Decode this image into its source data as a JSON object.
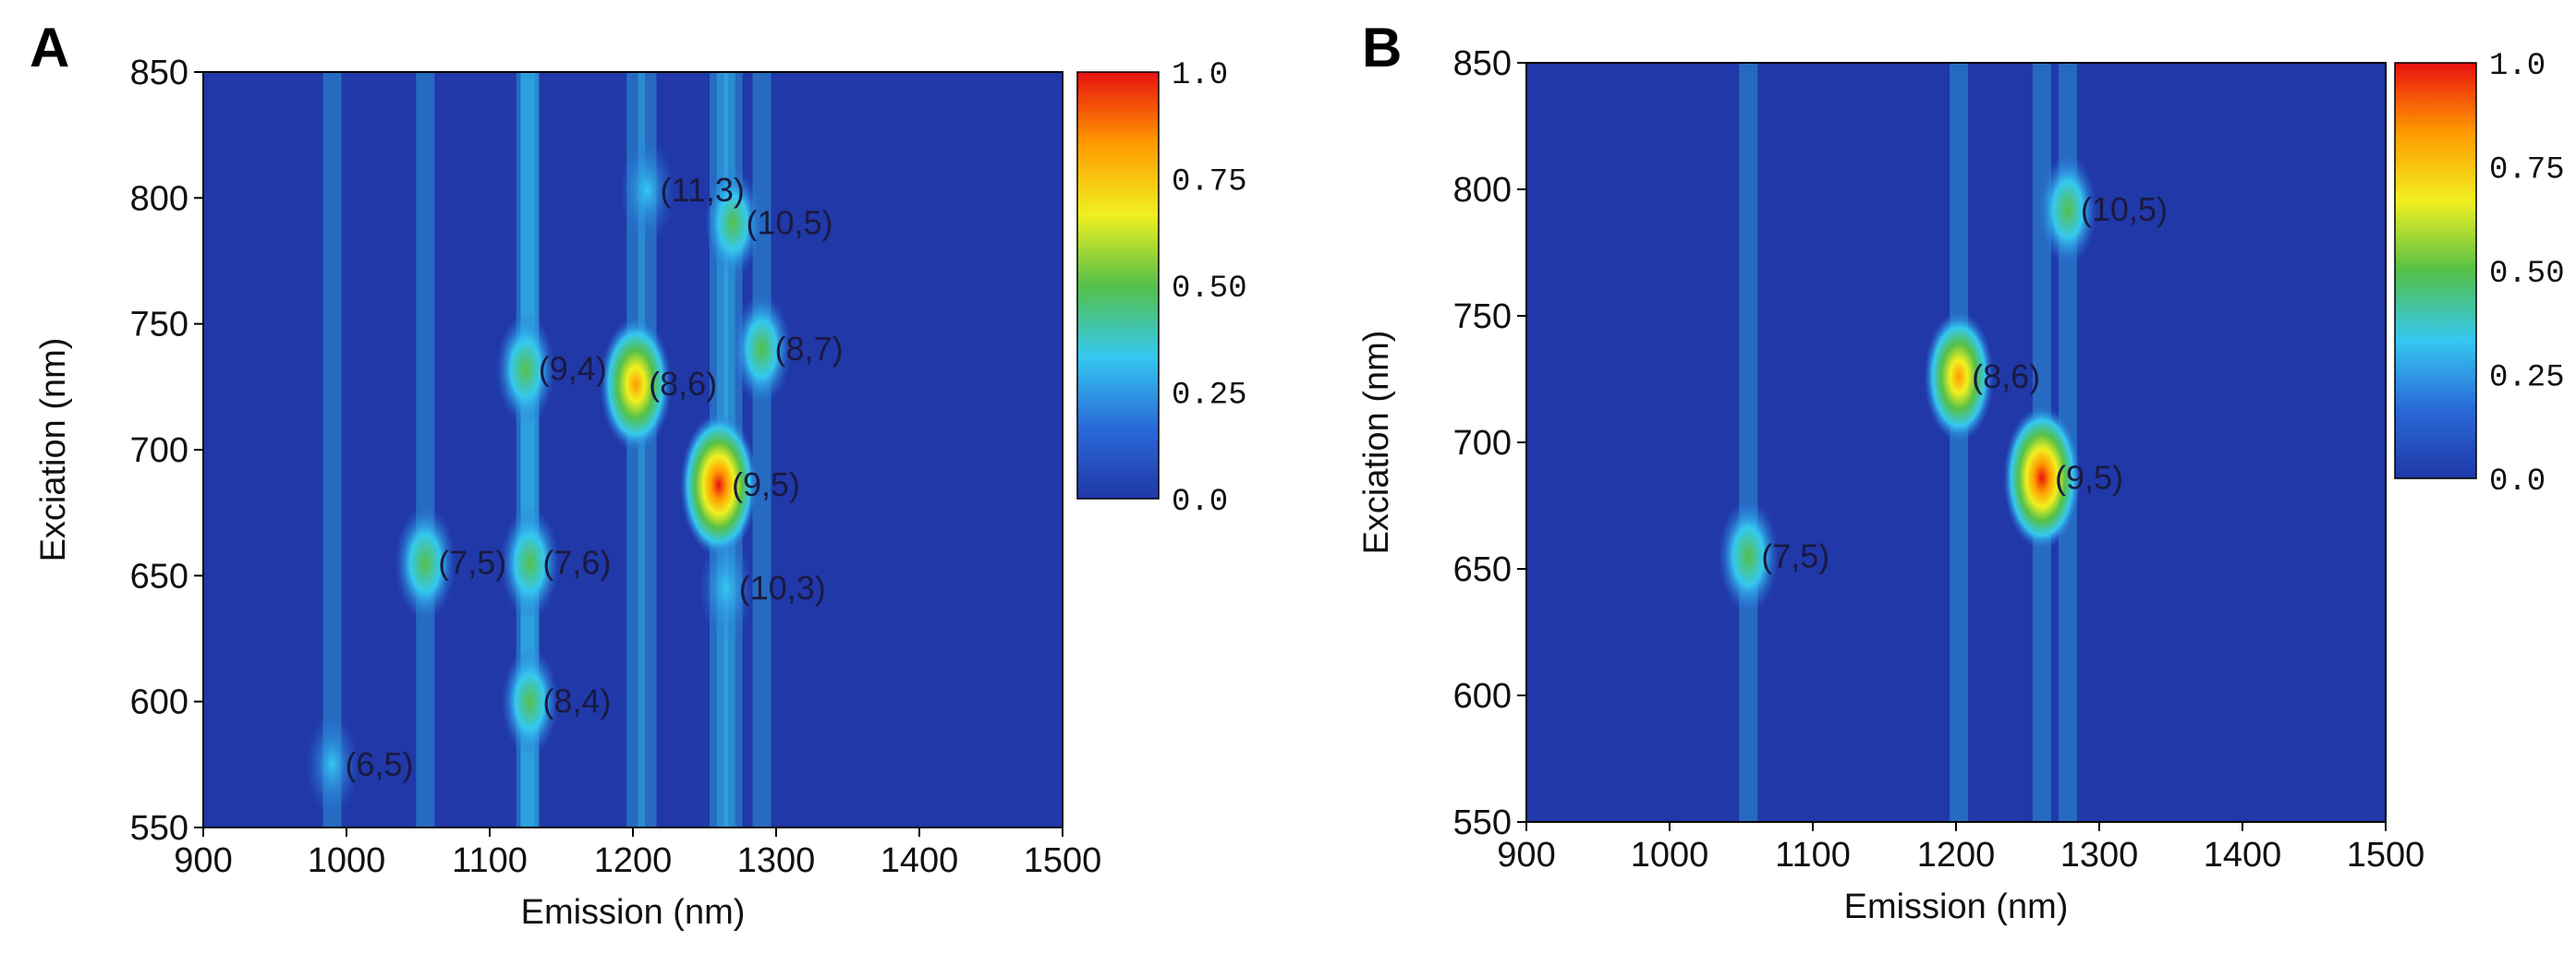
{
  "chart_data": [
    {
      "type": "heatmap",
      "panel": "A",
      "xlabel": "Emission (nm)",
      "ylabel": "Exciation (nm)",
      "xlim": [
        900,
        1500
      ],
      "ylim": [
        550,
        850
      ],
      "xticks": [
        "900",
        "1000",
        "1100",
        "1200",
        "1300",
        "1400",
        "1500"
      ],
      "yticks": [
        "550",
        "600",
        "650",
        "700",
        "750",
        "800",
        "850"
      ],
      "colorbar": {
        "range": [
          0,
          1.0
        ],
        "ticks": [
          "0.0",
          "0.25",
          "0.50",
          "0.75",
          "1.0"
        ]
      },
      "colormap": [
        "#2038a8",
        "#2a6ad8",
        "#35c8f0",
        "#55c048",
        "#f0f020",
        "#ff9a00",
        "#e81010"
      ],
      "peaks": [
        {
          "label": "(6,5)",
          "x": 990,
          "y": 575,
          "value": 0.35
        },
        {
          "label": "(7,5)",
          "x": 1055,
          "y": 655,
          "value": 0.55
        },
        {
          "label": "(7,6)",
          "x": 1128,
          "y": 655,
          "value": 0.5
        },
        {
          "label": "(8,4)",
          "x": 1128,
          "y": 600,
          "value": 0.45
        },
        {
          "label": "(9,4)",
          "x": 1125,
          "y": 732,
          "value": 0.5
        },
        {
          "label": "(8,6)",
          "x": 1202,
          "y": 726,
          "value": 0.85
        },
        {
          "label": "(9,5)",
          "x": 1260,
          "y": 686,
          "value": 1.0
        },
        {
          "label": "(10,3)",
          "x": 1265,
          "y": 645,
          "value": 0.4
        },
        {
          "label": "(11,3)",
          "x": 1210,
          "y": 803,
          "value": 0.4
        },
        {
          "label": "(10,5)",
          "x": 1270,
          "y": 790,
          "value": 0.45
        },
        {
          "label": "(8,7)",
          "x": 1290,
          "y": 740,
          "value": 0.5
        }
      ]
    },
    {
      "type": "heatmap",
      "panel": "B",
      "xlabel": "Emission (nm)",
      "ylabel": "Exciation (nm)",
      "xlim": [
        900,
        1500
      ],
      "ylim": [
        550,
        850
      ],
      "xticks": [
        "900",
        "1000",
        "1100",
        "1200",
        "1300",
        "1400",
        "1500"
      ],
      "yticks": [
        "550",
        "600",
        "650",
        "700",
        "750",
        "800",
        "850"
      ],
      "colorbar": {
        "range": [
          0,
          1.0
        ],
        "ticks": [
          "0.0",
          "0.25",
          "0.50",
          "0.75",
          "1.0"
        ]
      },
      "colormap": [
        "#2038a8",
        "#2a6ad8",
        "#35c8f0",
        "#55c048",
        "#f0f020",
        "#ff9a00",
        "#e81010"
      ],
      "peaks": [
        {
          "label": "(7,5)",
          "x": 1055,
          "y": 655,
          "value": 0.55
        },
        {
          "label": "(8,6)",
          "x": 1202,
          "y": 726,
          "value": 0.8
        },
        {
          "label": "(9,5)",
          "x": 1260,
          "y": 686,
          "value": 1.0
        },
        {
          "label": "(10,5)",
          "x": 1278,
          "y": 792,
          "value": 0.5
        }
      ]
    }
  ]
}
